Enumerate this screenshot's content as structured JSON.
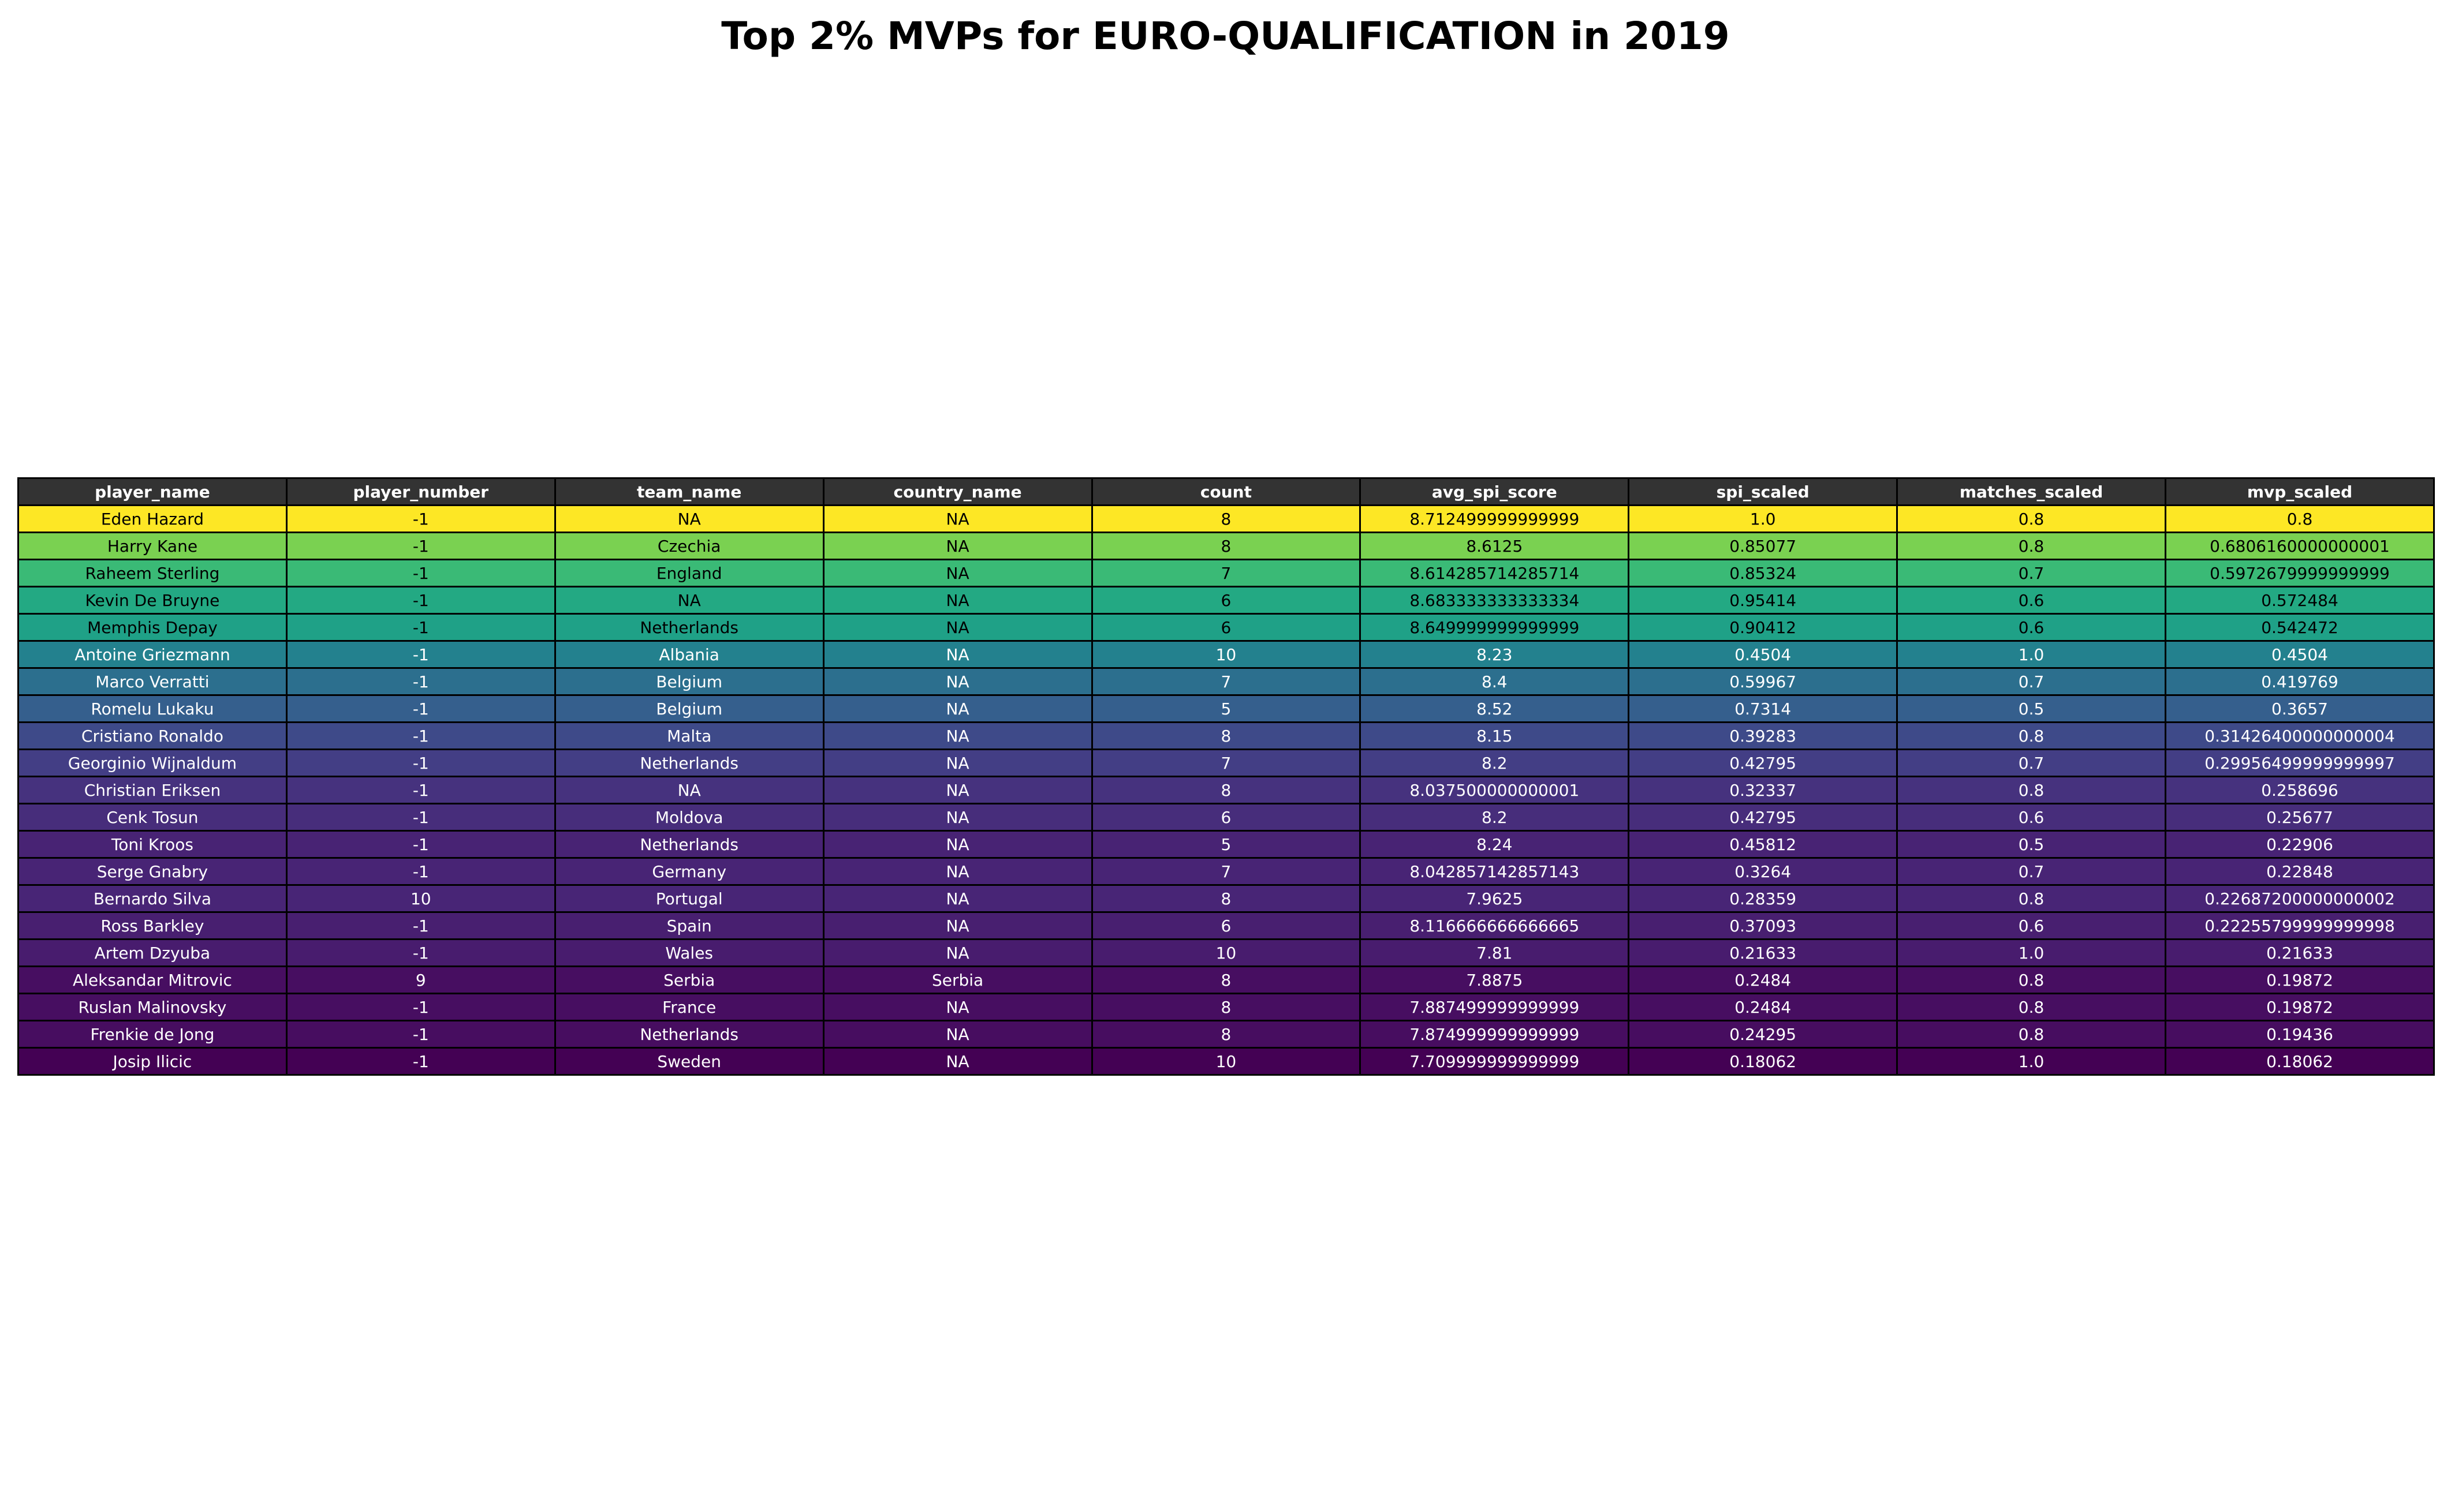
{
  "chart_data": {
    "type": "table",
    "title": "Top 2% MVPs for EURO-QUALIFICATION in 2019",
    "columns": [
      "player_name",
      "player_number",
      "team_name",
      "country_name",
      "count",
      "avg_spi_score",
      "spi_scaled",
      "matches_scaled",
      "mvp_scaled"
    ],
    "rows": [
      [
        "Eden Hazard",
        "-1",
        "NA",
        "NA",
        "8",
        "8.712499999999999",
        "1.0",
        "0.8",
        "0.8"
      ],
      [
        "Harry Kane",
        "-1",
        "Czechia",
        "NA",
        "8",
        "8.6125",
        "0.85077",
        "0.8",
        "0.6806160000000001"
      ],
      [
        "Raheem Sterling",
        "-1",
        "England",
        "NA",
        "7",
        "8.614285714285714",
        "0.85324",
        "0.7",
        "0.5972679999999999"
      ],
      [
        "Kevin De Bruyne",
        "-1",
        "NA",
        "NA",
        "6",
        "8.683333333333334",
        "0.95414",
        "0.6",
        "0.572484"
      ],
      [
        "Memphis Depay",
        "-1",
        "Netherlands",
        "NA",
        "6",
        "8.649999999999999",
        "0.90412",
        "0.6",
        "0.542472"
      ],
      [
        "Antoine Griezmann",
        "-1",
        "Albania",
        "NA",
        "10",
        "8.23",
        "0.4504",
        "1.0",
        "0.4504"
      ],
      [
        "Marco Verratti",
        "-1",
        "Belgium",
        "NA",
        "7",
        "8.4",
        "0.59967",
        "0.7",
        "0.419769"
      ],
      [
        "Romelu Lukaku",
        "-1",
        "Belgium",
        "NA",
        "5",
        "8.52",
        "0.7314",
        "0.5",
        "0.3657"
      ],
      [
        "Cristiano Ronaldo",
        "-1",
        "Malta",
        "NA",
        "8",
        "8.15",
        "0.39283",
        "0.8",
        "0.31426400000000004"
      ],
      [
        "Georginio Wijnaldum",
        "-1",
        "Netherlands",
        "NA",
        "7",
        "8.2",
        "0.42795",
        "0.7",
        "0.29956499999999997"
      ],
      [
        "Christian Eriksen",
        "-1",
        "NA",
        "NA",
        "8",
        "8.037500000000001",
        "0.32337",
        "0.8",
        "0.258696"
      ],
      [
        "Cenk Tosun",
        "-1",
        "Moldova",
        "NA",
        "6",
        "8.2",
        "0.42795",
        "0.6",
        "0.25677"
      ],
      [
        "Toni Kroos",
        "-1",
        "Netherlands",
        "NA",
        "5",
        "8.24",
        "0.45812",
        "0.5",
        "0.22906"
      ],
      [
        "Serge Gnabry",
        "-1",
        "Germany",
        "NA",
        "7",
        "8.042857142857143",
        "0.3264",
        "0.7",
        "0.22848"
      ],
      [
        "Bernardo Silva",
        "10",
        "Portugal",
        "NA",
        "8",
        "7.9625",
        "0.28359",
        "0.8",
        "0.22687200000000002"
      ],
      [
        "Ross Barkley",
        "-1",
        "Spain",
        "NA",
        "6",
        "8.116666666666665",
        "0.37093",
        "0.6",
        "0.22255799999999998"
      ],
      [
        "Artem Dzyuba",
        "-1",
        "Wales",
        "NA",
        "10",
        "7.81",
        "0.21633",
        "1.0",
        "0.21633"
      ],
      [
        "Aleksandar Mitrovic",
        "9",
        "Serbia",
        "Serbia",
        "8",
        "7.8875",
        "0.2484",
        "0.8",
        "0.19872"
      ],
      [
        "Ruslan Malinovsky",
        "-1",
        "France",
        "NA",
        "8",
        "7.887499999999999",
        "0.2484",
        "0.8",
        "0.19872"
      ],
      [
        "Frenkie de Jong",
        "-1",
        "Netherlands",
        "NA",
        "8",
        "7.874999999999999",
        "0.24295",
        "0.8",
        "0.19436"
      ],
      [
        "Josip Ilicic",
        "-1",
        "Sweden",
        "NA",
        "10",
        "7.709999999999999",
        "0.18062",
        "1.0",
        "0.18062"
      ]
    ],
    "row_colors": [
      "#fde725",
      "#7ad151",
      "#3aba76",
      "#23a983",
      "#1fa187",
      "#23818e",
      "#2c6f8e",
      "#355f8d",
      "#3e4a89",
      "#433e85",
      "#46327e",
      "#472d7b",
      "#482374",
      "#482475",
      "#482576",
      "#481f70",
      "#481c6e",
      "#470e61",
      "#470e61",
      "#470d60",
      "#440154"
    ],
    "row_text_colors": [
      "#000000",
      "#000000",
      "#000000",
      "#000000",
      "#000000",
      "#ffffff",
      "#ffffff",
      "#ffffff",
      "#ffffff",
      "#ffffff",
      "#ffffff",
      "#ffffff",
      "#ffffff",
      "#ffffff",
      "#ffffff",
      "#ffffff",
      "#ffffff",
      "#ffffff",
      "#ffffff",
      "#ffffff",
      "#ffffff"
    ],
    "header_color": "#333333",
    "colormap": "viridis"
  }
}
